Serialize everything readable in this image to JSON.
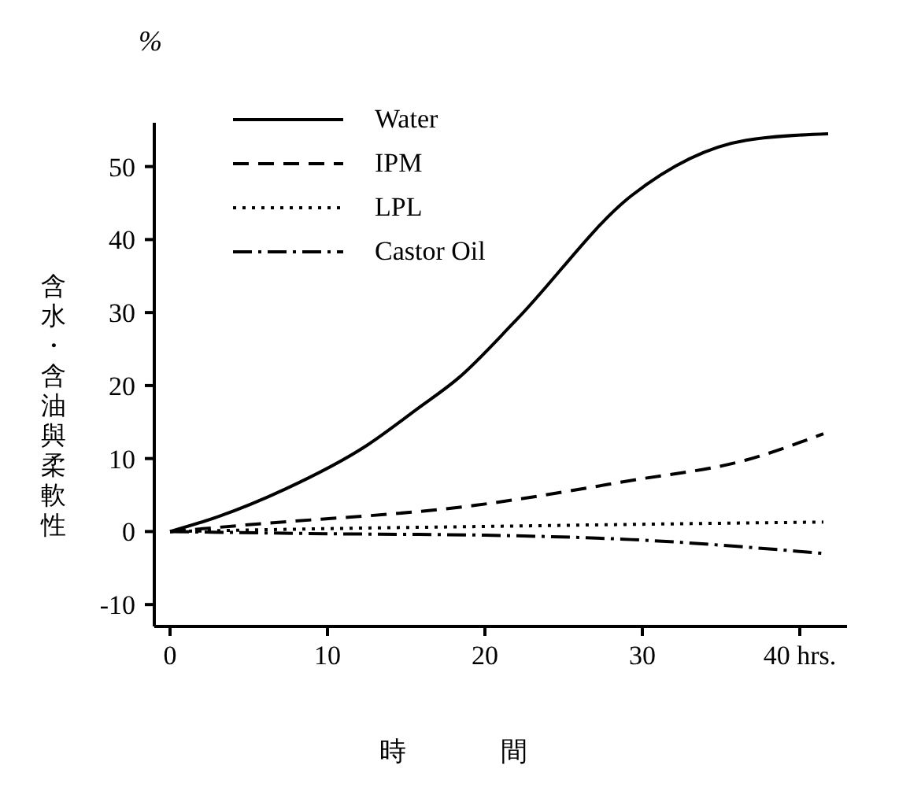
{
  "chart_data": {
    "type": "line",
    "xlabel": "時間",
    "ylabel": "含水・含油與柔軟性",
    "annotations": [
      "%"
    ],
    "xlim": [
      -1,
      43
    ],
    "ylim": [
      -13,
      56
    ],
    "xticks": [
      0,
      10,
      20,
      30,
      {
        "value": 40,
        "label": "40 hrs."
      }
    ],
    "yticks": [
      -10,
      0,
      10,
      20,
      30,
      40,
      50
    ],
    "grid": false,
    "legend": "top left",
    "marker": "none",
    "series": [
      {
        "name": "Water",
        "color": "#000000",
        "line_style": "solid",
        "x": [
          0,
          3,
          7.3,
          12.5,
          15.7,
          18.3,
          22,
          29.3,
          36.6,
          41.8
        ],
        "values": [
          0,
          2,
          5.8,
          11.8,
          16.8,
          21,
          29,
          46,
          53.6,
          54.5
        ]
      },
      {
        "name": "IPM",
        "color": "#000000",
        "line_style": "dashed",
        "x": [
          0,
          4.8,
          19.4,
          29.3,
          36.6,
          41.5
        ],
        "values": [
          0,
          0.9,
          3.6,
          7,
          9.8,
          13.4
        ]
      },
      {
        "name": "LPL",
        "color": "#000000",
        "line_style": "dotted",
        "x": [
          0,
          10,
          20,
          30,
          41.5
        ],
        "values": [
          0,
          0.4,
          0.7,
          1,
          1.3
        ]
      },
      {
        "name": "Castor Oil",
        "color": "#000000",
        "line_style": "dashdot",
        "x": [
          0,
          10,
          20,
          29.3,
          41.5
        ],
        "values": [
          0,
          -0.3,
          -0.5,
          -1.1,
          -3
        ]
      }
    ]
  }
}
